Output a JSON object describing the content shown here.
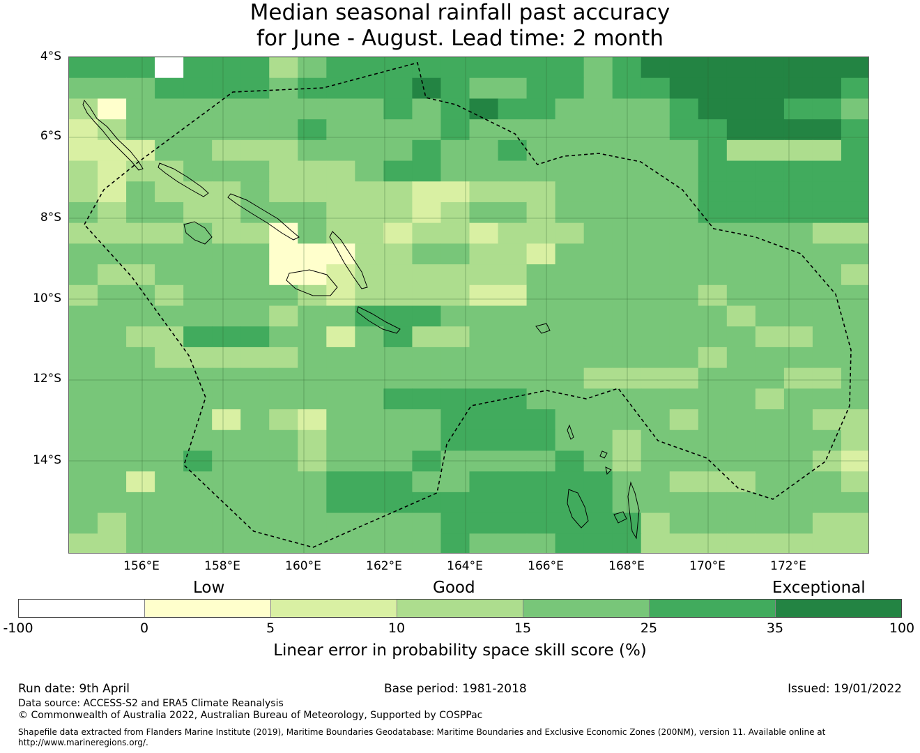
{
  "title": {
    "line1": "Median seasonal rainfall past accuracy",
    "line2": "for June - August. Lead time: 2 month"
  },
  "map": {
    "lat_labels": [
      "4°S",
      "6°S",
      "8°S",
      "10°S",
      "12°S",
      "14°S"
    ],
    "lon_labels": [
      "156°E",
      "158°E",
      "160°E",
      "162°E",
      "164°E",
      "166°E",
      "168°E",
      "170°E",
      "172°E"
    ],
    "boundary_style": "dashed",
    "grid": true
  },
  "legend": {
    "categories": [
      "Low",
      "Good",
      "Exceptional"
    ],
    "ticks": [
      "-100",
      "0",
      "5",
      "10",
      "15",
      "25",
      "35",
      "100"
    ],
    "colors": [
      "#ffffff",
      "#ffffcc",
      "#d9f0a3",
      "#addd8e",
      "#78c679",
      "#41ab5d",
      "#238443"
    ],
    "title": "Linear error in probability space skill score (%)"
  },
  "footer": {
    "run_date": "Run date: 9th April",
    "base_period": "Base period: 1981-2018",
    "issued": "Issued: 19/01/2022",
    "data_source": "Data source: ACCESS-S2 and ERA5 Climate Reanalysis",
    "copyright": "© Commonwealth of Australia 2022, Australian Bureau of Meteorology, Supported by COSPPac",
    "shapefile_line1": "Shapefile data extracted from Flanders Marine Institute (2019), Maritime Boundaries Geodatabase: Maritime Boundaries and Exclusive Economic Zones (200NM), version 11. Available online at",
    "shapefile_line2": "http://www.marineregions.org/."
  }
}
